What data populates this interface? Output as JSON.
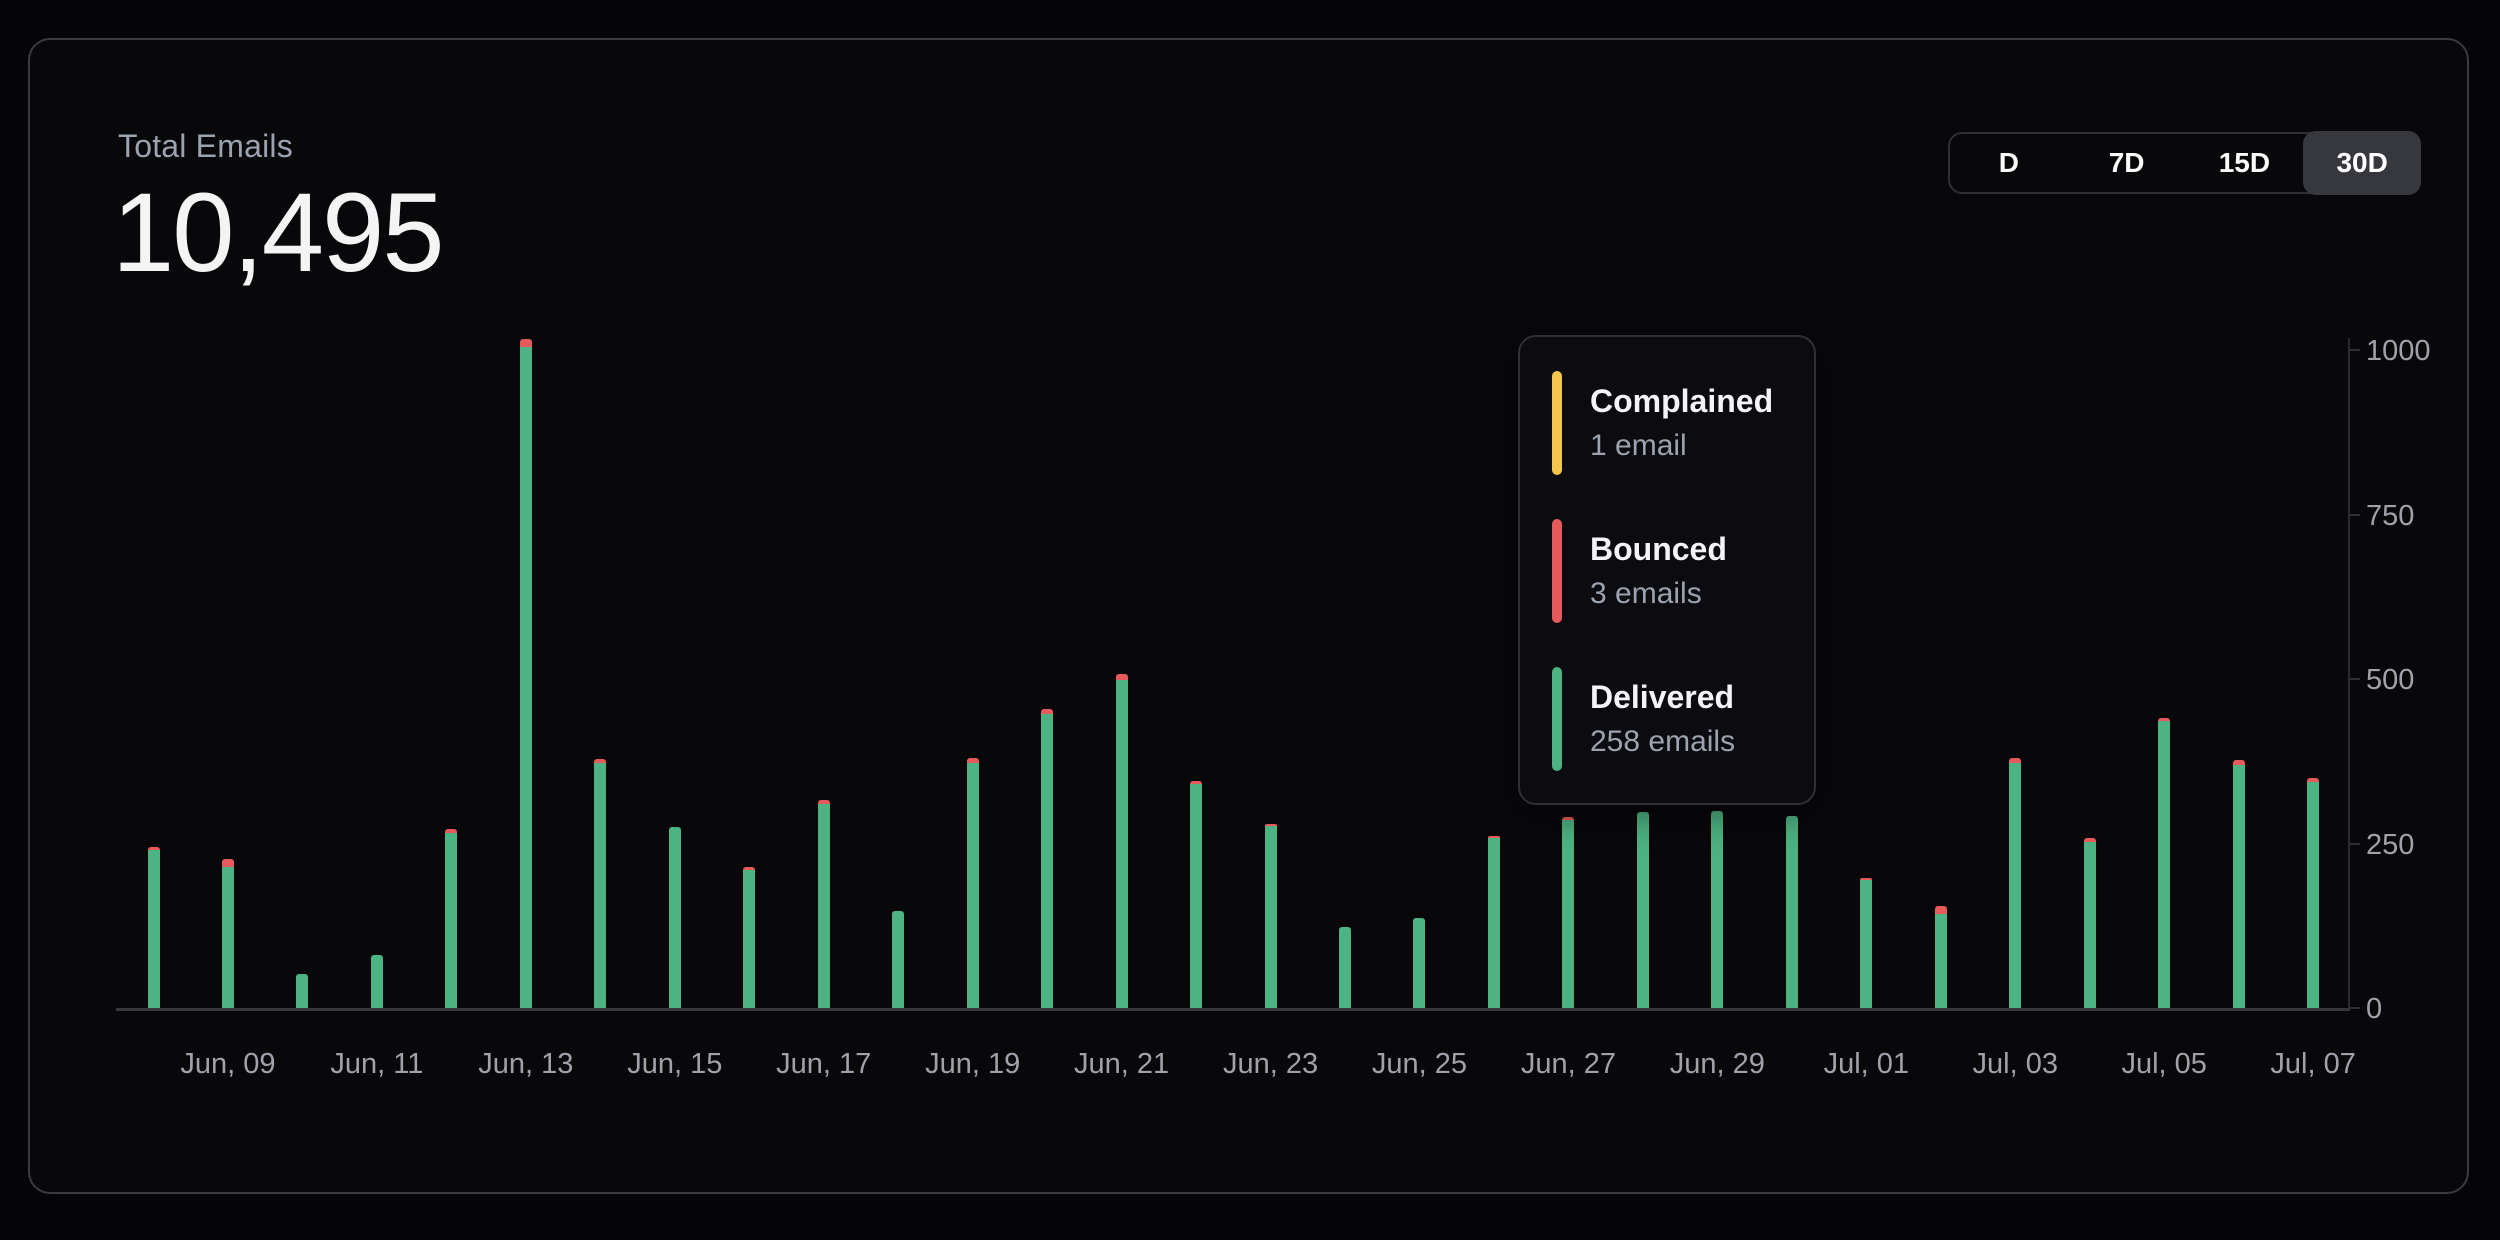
{
  "header": {
    "title": "Total Emails",
    "total": "10,495"
  },
  "range_selector": {
    "options": [
      {
        "label": "D",
        "selected": false
      },
      {
        "label": "7D",
        "selected": false
      },
      {
        "label": "15D",
        "selected": false
      },
      {
        "label": "30D",
        "selected": true
      }
    ]
  },
  "tooltip": {
    "items": [
      {
        "name": "complained",
        "label": "Complained",
        "value": "1 email",
        "color": "#f6c54b"
      },
      {
        "name": "bounced",
        "label": "Bounced",
        "value": "3 emails",
        "color": "#e65a5c"
      },
      {
        "name": "delivered",
        "label": "Delivered",
        "value": "258 emails",
        "color": "#4db382"
      }
    ]
  },
  "chart_data": {
    "type": "bar",
    "stacked": true,
    "x": [
      "Jun, 08",
      "Jun, 09",
      "Jun, 10",
      "Jun, 11",
      "Jun, 12",
      "Jun, 13",
      "Jun, 14",
      "Jun, 15",
      "Jun, 16",
      "Jun, 17",
      "Jun, 18",
      "Jun, 19",
      "Jun, 20",
      "Jun, 21",
      "Jun, 22",
      "Jun, 23",
      "Jun, 24",
      "Jun, 25",
      "Jun, 26",
      "Jun, 27",
      "Jun, 28",
      "Jun, 29",
      "Jun, 30",
      "Jul, 01",
      "Jul, 02",
      "Jul, 03",
      "Jul, 04",
      "Jul, 05",
      "Jul, 06",
      "Jul, 07"
    ],
    "series": [
      {
        "name": "Delivered",
        "color": "#4db382",
        "values": [
          240,
          214,
          52,
          80,
          266,
          1005,
          373,
          275,
          210,
          310,
          147,
          373,
          447,
          498,
          340,
          276,
          123,
          137,
          258,
          286,
          298,
          300,
          292,
          194,
          143,
          372,
          252,
          436,
          369,
          344
        ]
      },
      {
        "name": "Bounced",
        "color": "#e65a5c",
        "values": [
          5,
          12,
          0,
          0,
          6,
          12,
          6,
          0,
          5,
          6,
          0,
          7,
          8,
          10,
          5,
          4,
          0,
          0,
          3,
          4,
          0,
          0,
          0,
          4,
          12,
          8,
          6,
          4,
          8,
          6
        ]
      }
    ],
    "x_tick_labels": [
      {
        "i": 1,
        "label": "Jun, 09"
      },
      {
        "i": 3,
        "label": "Jun, 11"
      },
      {
        "i": 5,
        "label": "Jun, 13"
      },
      {
        "i": 7,
        "label": "Jun, 15"
      },
      {
        "i": 9,
        "label": "Jun, 17"
      },
      {
        "i": 11,
        "label": "Jun, 19"
      },
      {
        "i": 13,
        "label": "Jun, 21"
      },
      {
        "i": 15,
        "label": "Jun, 23"
      },
      {
        "i": 17,
        "label": "Jun, 25"
      },
      {
        "i": 19,
        "label": "Jun, 27"
      },
      {
        "i": 21,
        "label": "Jun, 29"
      },
      {
        "i": 23,
        "label": "Jul, 01"
      },
      {
        "i": 25,
        "label": "Jul, 03"
      },
      {
        "i": 27,
        "label": "Jul, 05"
      },
      {
        "i": 29,
        "label": "Jul, 07"
      }
    ],
    "ylim": [
      0,
      1000
    ],
    "y_ticks": [
      0,
      250,
      500,
      750,
      1000
    ],
    "y_axis_side": "right",
    "grid": false,
    "title": "Total Emails",
    "legend_position": "floating-tooltip"
  }
}
